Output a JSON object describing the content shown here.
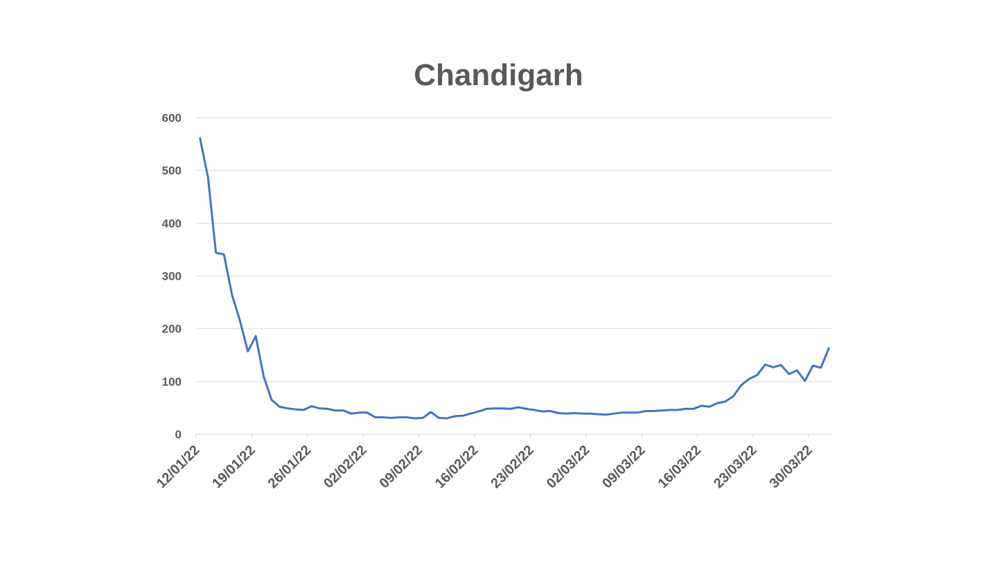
{
  "chart_data": {
    "type": "line",
    "title": "Chandigarh",
    "xlabel": "",
    "ylabel": "",
    "ylim": [
      0,
      600
    ],
    "yticks": [
      0,
      100,
      200,
      300,
      400,
      500,
      600
    ],
    "grid": true,
    "legend": "none",
    "line_color": "#4472C4",
    "x_tick_labels": [
      "12/01/22",
      "19/01/22",
      "26/01/22",
      "02/02/22",
      "09/02/22",
      "16/02/22",
      "23/02/22",
      "02/03/22",
      "09/03/22",
      "16/03/22",
      "23/03/22",
      "30/03/22"
    ],
    "x": [
      "12/01/22",
      "13/01/22",
      "14/01/22",
      "15/01/22",
      "16/01/22",
      "17/01/22",
      "18/01/22",
      "19/01/22",
      "20/01/22",
      "21/01/22",
      "22/01/22",
      "23/01/22",
      "24/01/22",
      "25/01/22",
      "26/01/22",
      "27/01/22",
      "28/01/22",
      "29/01/22",
      "30/01/22",
      "31/01/22",
      "01/02/22",
      "02/02/22",
      "03/02/22",
      "04/02/22",
      "05/02/22",
      "06/02/22",
      "07/02/22",
      "08/02/22",
      "09/02/22",
      "10/02/22",
      "11/02/22",
      "12/02/22",
      "13/02/22",
      "14/02/22",
      "15/02/22",
      "16/02/22",
      "17/02/22",
      "18/02/22",
      "19/02/22",
      "20/02/22",
      "21/02/22",
      "22/02/22",
      "23/02/22",
      "24/02/22",
      "25/02/22",
      "26/02/22",
      "27/02/22",
      "28/02/22",
      "01/03/22",
      "02/03/22",
      "03/03/22",
      "04/03/22",
      "05/03/22",
      "06/03/22",
      "07/03/22",
      "08/03/22",
      "09/03/22",
      "10/03/22",
      "11/03/22",
      "12/03/22",
      "13/03/22",
      "14/03/22",
      "15/03/22",
      "16/03/22",
      "17/03/22",
      "18/03/22",
      "19/03/22",
      "20/03/22",
      "21/03/22",
      "22/03/22",
      "23/03/22",
      "24/03/22",
      "25/03/22",
      "26/03/22",
      "27/03/22",
      "28/03/22",
      "29/03/22",
      "30/03/22",
      "31/03/22",
      "01/04/22"
    ],
    "series": [
      {
        "name": "",
        "values": [
          561,
          487,
          344,
          341,
          265,
          216,
          157,
          186,
          109,
          65,
          52,
          49,
          47,
          46,
          53,
          49,
          48,
          45,
          45,
          39,
          41,
          41,
          32,
          32,
          31,
          32,
          32,
          30,
          31,
          42,
          31,
          30,
          34,
          35,
          39,
          43,
          48,
          49,
          49,
          48,
          51,
          48,
          46,
          43,
          44,
          40,
          39,
          40,
          39,
          39,
          38,
          37,
          39,
          41,
          41,
          41,
          44,
          44,
          45,
          46,
          46,
          48,
          48,
          54,
          52,
          59,
          62,
          72,
          93,
          105,
          112,
          132,
          127,
          131,
          114,
          121,
          101,
          130,
          126,
          163
        ]
      }
    ]
  }
}
